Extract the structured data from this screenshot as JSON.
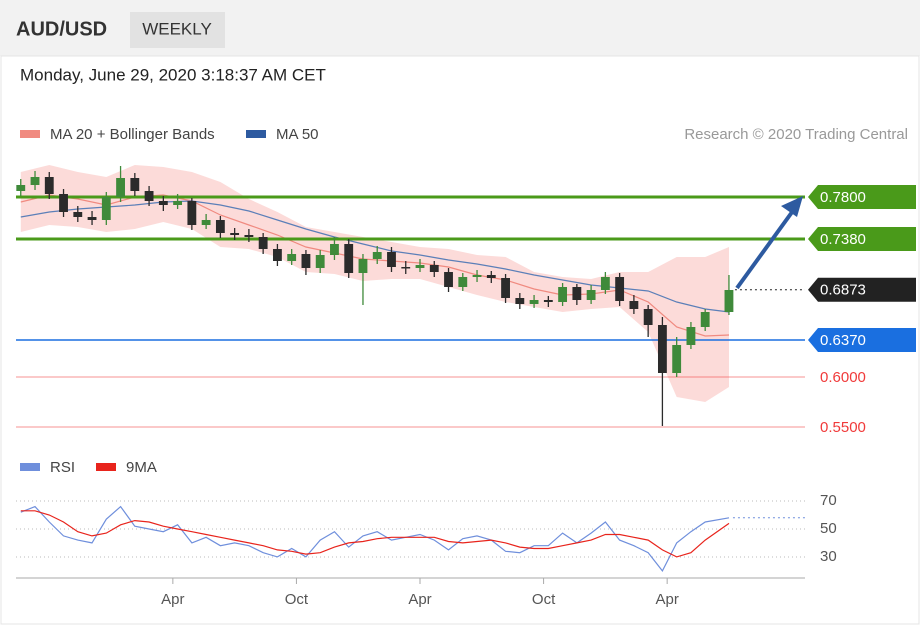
{
  "header": {
    "symbol": "AUD/USD",
    "interval": "WEEKLY",
    "timestamp": "Monday, June 29, 2020 3:18:37 AM CET"
  },
  "chart_data": [
    {
      "type": "candlestick",
      "attribution": "Research © 2020 Trading Central",
      "xlim": [
        -1,
        165
      ],
      "ylim": [
        0.537,
        0.817
      ],
      "x": [
        0,
        3,
        6,
        9,
        12,
        15,
        18,
        21,
        24,
        27,
        30,
        33,
        36,
        39,
        42,
        45,
        48,
        51,
        54,
        57,
        60,
        63,
        66,
        69,
        72,
        75,
        78,
        81,
        84,
        87,
        90,
        93,
        96,
        99,
        102,
        105,
        108,
        111,
        114,
        117,
        120,
        123,
        126,
        129,
        132,
        135,
        138,
        141,
        144,
        149
      ],
      "open": [
        0.786,
        0.792,
        0.8,
        0.783,
        0.765,
        0.76,
        0.757,
        0.78,
        0.799,
        0.786,
        0.776,
        0.772,
        0.776,
        0.752,
        0.757,
        0.744,
        0.742,
        0.74,
        0.728,
        0.716,
        0.723,
        0.709,
        0.722,
        0.733,
        0.704,
        0.718,
        0.725,
        0.71,
        0.709,
        0.712,
        0.705,
        0.69,
        0.7,
        0.702,
        0.699,
        0.679,
        0.673,
        0.677,
        0.675,
        0.69,
        0.677,
        0.687,
        0.7,
        0.676,
        0.668,
        0.652,
        0.604,
        0.632,
        0.65,
        0.665
      ],
      "high": [
        0.798,
        0.806,
        0.805,
        0.788,
        0.771,
        0.766,
        0.785,
        0.811,
        0.804,
        0.791,
        0.781,
        0.783,
        0.779,
        0.763,
        0.761,
        0.749,
        0.748,
        0.744,
        0.733,
        0.728,
        0.727,
        0.727,
        0.74,
        0.738,
        0.723,
        0.731,
        0.73,
        0.716,
        0.718,
        0.716,
        0.709,
        0.704,
        0.707,
        0.706,
        0.703,
        0.684,
        0.682,
        0.681,
        0.694,
        0.693,
        0.692,
        0.705,
        0.704,
        0.682,
        0.672,
        0.66,
        0.64,
        0.655,
        0.668,
        0.702
      ],
      "low": [
        0.781,
        0.787,
        0.778,
        0.76,
        0.755,
        0.752,
        0.752,
        0.775,
        0.781,
        0.771,
        0.766,
        0.768,
        0.747,
        0.748,
        0.739,
        0.737,
        0.735,
        0.723,
        0.711,
        0.712,
        0.702,
        0.704,
        0.717,
        0.699,
        0.672,
        0.713,
        0.705,
        0.703,
        0.705,
        0.7,
        0.685,
        0.686,
        0.695,
        0.694,
        0.674,
        0.668,
        0.669,
        0.67,
        0.671,
        0.672,
        0.673,
        0.683,
        0.671,
        0.663,
        0.64,
        0.551,
        0.6,
        0.628,
        0.646,
        0.662
      ],
      "close": [
        0.792,
        0.8,
        0.783,
        0.765,
        0.76,
        0.757,
        0.78,
        0.799,
        0.786,
        0.776,
        0.772,
        0.776,
        0.752,
        0.757,
        0.744,
        0.742,
        0.74,
        0.728,
        0.716,
        0.723,
        0.709,
        0.722,
        0.733,
        0.704,
        0.718,
        0.725,
        0.71,
        0.709,
        0.712,
        0.705,
        0.69,
        0.7,
        0.702,
        0.699,
        0.679,
        0.673,
        0.677,
        0.675,
        0.69,
        0.677,
        0.687,
        0.7,
        0.676,
        0.668,
        0.652,
        0.604,
        0.632,
        0.65,
        0.665,
        0.687
      ],
      "up_color": "#3f8a3a",
      "down_color": "#2b2b2b",
      "series": [
        {
          "name": "MA 20 + Bollinger Bands",
          "color": "#f08a80",
          "band_color": "#fbd5d2",
          "x": [
            0,
            6,
            12,
            18,
            24,
            30,
            36,
            42,
            48,
            54,
            60,
            66,
            72,
            78,
            84,
            90,
            96,
            102,
            108,
            114,
            120,
            126,
            132,
            138,
            144,
            149
          ],
          "values": [
            0.775,
            0.782,
            0.778,
            0.772,
            0.78,
            0.782,
            0.776,
            0.762,
            0.752,
            0.742,
            0.73,
            0.724,
            0.718,
            0.716,
            0.714,
            0.71,
            0.702,
            0.697,
            0.688,
            0.682,
            0.683,
            0.687,
            0.675,
            0.65,
            0.641,
            0.642
          ],
          "upper": [
            0.805,
            0.812,
            0.805,
            0.8,
            0.812,
            0.81,
            0.805,
            0.795,
            0.778,
            0.765,
            0.75,
            0.745,
            0.74,
            0.735,
            0.73,
            0.728,
            0.722,
            0.72,
            0.705,
            0.7,
            0.698,
            0.705,
            0.705,
            0.72,
            0.72,
            0.73
          ],
          "lower": [
            0.745,
            0.752,
            0.75,
            0.745,
            0.748,
            0.755,
            0.748,
            0.73,
            0.728,
            0.72,
            0.705,
            0.703,
            0.696,
            0.698,
            0.698,
            0.69,
            0.682,
            0.675,
            0.67,
            0.665,
            0.668,
            0.67,
            0.645,
            0.58,
            0.575,
            0.59
          ]
        },
        {
          "name": "MA 50",
          "color": "#5b7fb8",
          "x": [
            0,
            6,
            12,
            18,
            24,
            30,
            36,
            42,
            48,
            54,
            60,
            66,
            72,
            78,
            84,
            90,
            96,
            102,
            108,
            114,
            120,
            126,
            132,
            138,
            144,
            149
          ],
          "values": [
            0.76,
            0.765,
            0.768,
            0.77,
            0.772,
            0.775,
            0.776,
            0.772,
            0.766,
            0.757,
            0.748,
            0.74,
            0.733,
            0.726,
            0.722,
            0.717,
            0.713,
            0.708,
            0.702,
            0.697,
            0.692,
            0.689,
            0.686,
            0.675,
            0.668,
            0.665
          ]
        }
      ],
      "levels": [
        {
          "value": 0.78,
          "label": "0.7800",
          "color": "#4a9a1a",
          "filled": true,
          "dotted": false
        },
        {
          "value": 0.738,
          "label": "0.7380",
          "color": "#4a9a1a",
          "filled": true,
          "dotted": false
        },
        {
          "value": 0.6873,
          "label": "0.6873",
          "color": "#222222",
          "filled": true,
          "dotted": true
        },
        {
          "value": 0.637,
          "label": "0.6370",
          "color": "#1a6fe0",
          "filled": true,
          "dotted": false
        },
        {
          "value": 0.6,
          "label": "0.6000",
          "color": "#f03a3a",
          "filled": false,
          "dotted": false
        },
        {
          "value": 0.55,
          "label": "0.5500",
          "color": "#f03a3a",
          "filled": false,
          "dotted": false
        }
      ]
    },
    {
      "type": "line",
      "xlim": [
        -1,
        165
      ],
      "ylim": [
        17.1,
        81.4
      ],
      "yticks": [
        30,
        50,
        70
      ],
      "xticks": [
        {
          "value": 32,
          "label": "Apr"
        },
        {
          "value": 58,
          "label": "Oct"
        },
        {
          "value": 84,
          "label": "Apr"
        },
        {
          "value": 110,
          "label": "Oct"
        },
        {
          "value": 136,
          "label": "Apr"
        }
      ],
      "series": [
        {
          "name": "RSI",
          "color": "#6f8fdc",
          "x": [
            0,
            3,
            6,
            9,
            12,
            15,
            18,
            21,
            24,
            27,
            30,
            33,
            36,
            39,
            42,
            45,
            48,
            51,
            54,
            57,
            60,
            63,
            66,
            69,
            72,
            75,
            78,
            81,
            84,
            87,
            90,
            93,
            96,
            99,
            102,
            105,
            108,
            111,
            114,
            117,
            120,
            123,
            126,
            129,
            132,
            135,
            138,
            141,
            144,
            149
          ],
          "values": [
            62,
            66,
            55,
            45,
            42,
            40,
            57,
            66,
            52,
            50,
            48,
            53,
            40,
            44,
            38,
            40,
            38,
            33,
            30,
            36,
            30,
            42,
            48,
            37,
            45,
            48,
            42,
            44,
            46,
            42,
            35,
            43,
            45,
            42,
            34,
            33,
            38,
            38,
            47,
            40,
            47,
            55,
            42,
            38,
            33,
            20,
            40,
            48,
            55,
            58
          ]
        },
        {
          "name": "9MA",
          "color": "#e8241c",
          "x": [
            0,
            3,
            6,
            9,
            12,
            15,
            18,
            21,
            24,
            27,
            30,
            33,
            36,
            39,
            42,
            45,
            48,
            51,
            54,
            57,
            60,
            63,
            66,
            69,
            72,
            75,
            78,
            81,
            84,
            87,
            90,
            93,
            96,
            99,
            102,
            105,
            108,
            111,
            114,
            117,
            120,
            123,
            126,
            129,
            132,
            135,
            138,
            141,
            144,
            149
          ],
          "values": [
            63,
            63,
            60,
            55,
            48,
            45,
            47,
            53,
            56,
            55,
            52,
            50,
            48,
            46,
            44,
            42,
            40,
            38,
            35,
            34,
            32,
            33,
            37,
            40,
            41,
            43,
            44,
            44,
            44,
            44,
            41,
            40,
            41,
            42,
            40,
            37,
            36,
            36,
            38,
            40,
            42,
            46,
            46,
            44,
            42,
            35,
            30,
            33,
            42,
            54
          ]
        }
      ]
    }
  ]
}
